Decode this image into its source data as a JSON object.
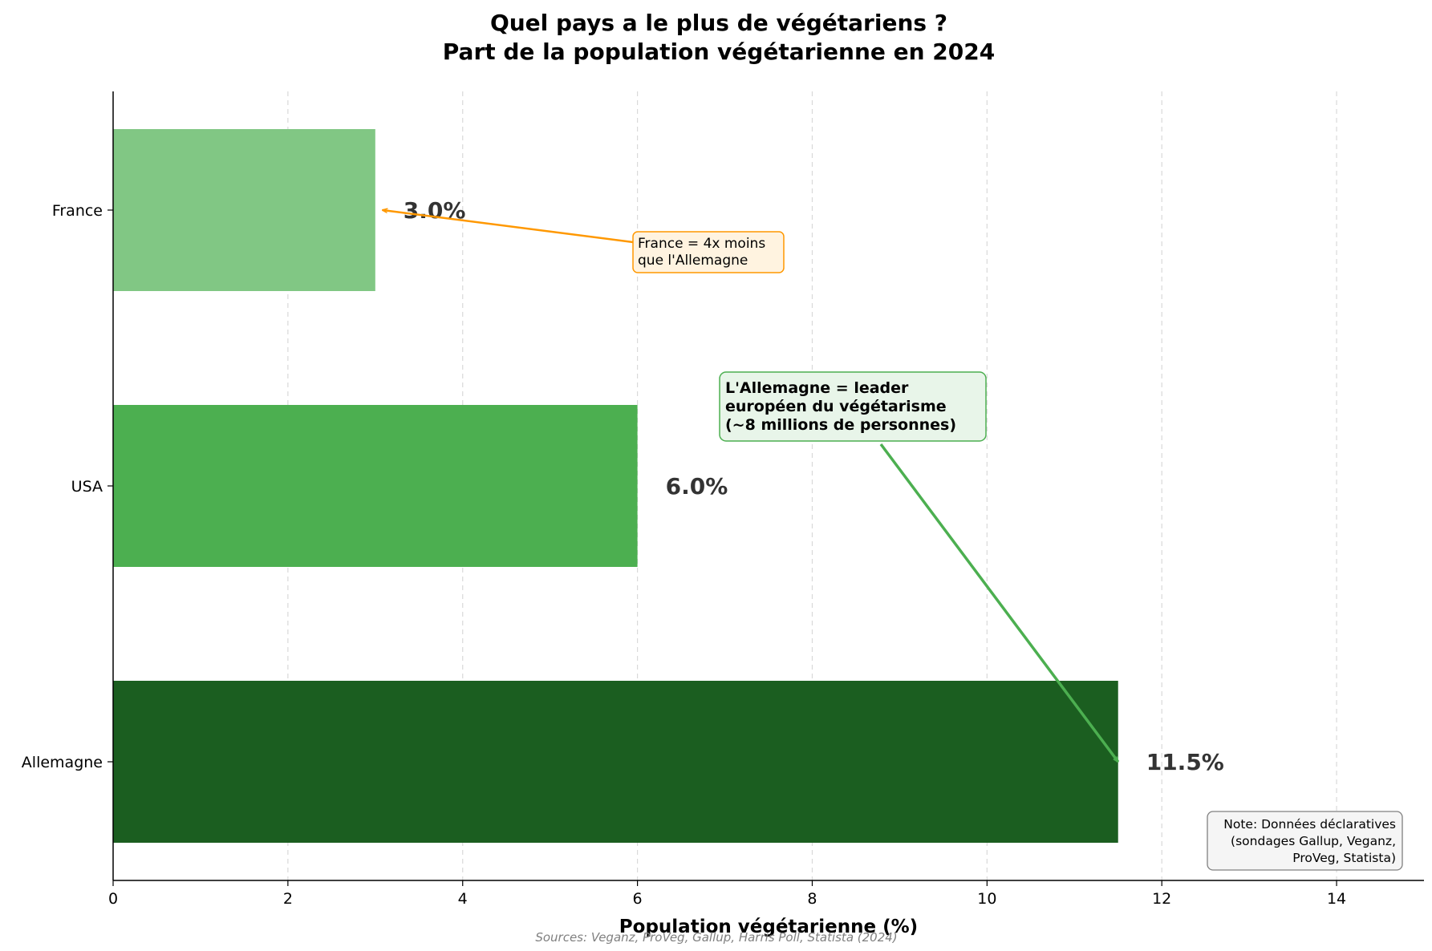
{
  "chart_data": {
    "type": "bar",
    "orientation": "horizontal",
    "title_lines": [
      "Quel pays a le plus de végétariens ?",
      "Part de la population végétarienne en 2024"
    ],
    "xlabel": "Population végétarienne (%)",
    "ylabel": "",
    "xlim": [
      0,
      15
    ],
    "x_ticks": [
      0,
      2,
      4,
      6,
      8,
      10,
      12,
      14
    ],
    "grid": "x dashed",
    "categories": [
      "France",
      "USA",
      "Allemagne"
    ],
    "values": [
      3.0,
      6.0,
      11.5
    ],
    "value_labels": [
      "3.0%",
      "6.0%",
      "11.5%"
    ],
    "colors": [
      "#81c784",
      "#4caf50",
      "#1b5e20"
    ],
    "annotations": [
      {
        "lines": [
          "France = 4x moins",
          "que l'Allemagne"
        ],
        "target": {
          "x": 3.0,
          "category": "France"
        },
        "color": "#ff9800",
        "box_fill": "#fff3e0"
      },
      {
        "lines": [
          "L'Allemagne = leader",
          "européen du végétarisme",
          "(~8 millions de personnes)"
        ],
        "target": {
          "x": 11.5,
          "category": "Allemagne"
        },
        "color": "#4caf50",
        "box_fill": "#e8f5e9"
      }
    ],
    "note_lines": [
      "Note: Données déclaratives",
      "(sondages Gallup, Veganz,",
      "ProVeg, Statista)"
    ],
    "source": "Sources: Veganz, ProVeg, Gallup, Harris Poll, Statista (2024)"
  }
}
